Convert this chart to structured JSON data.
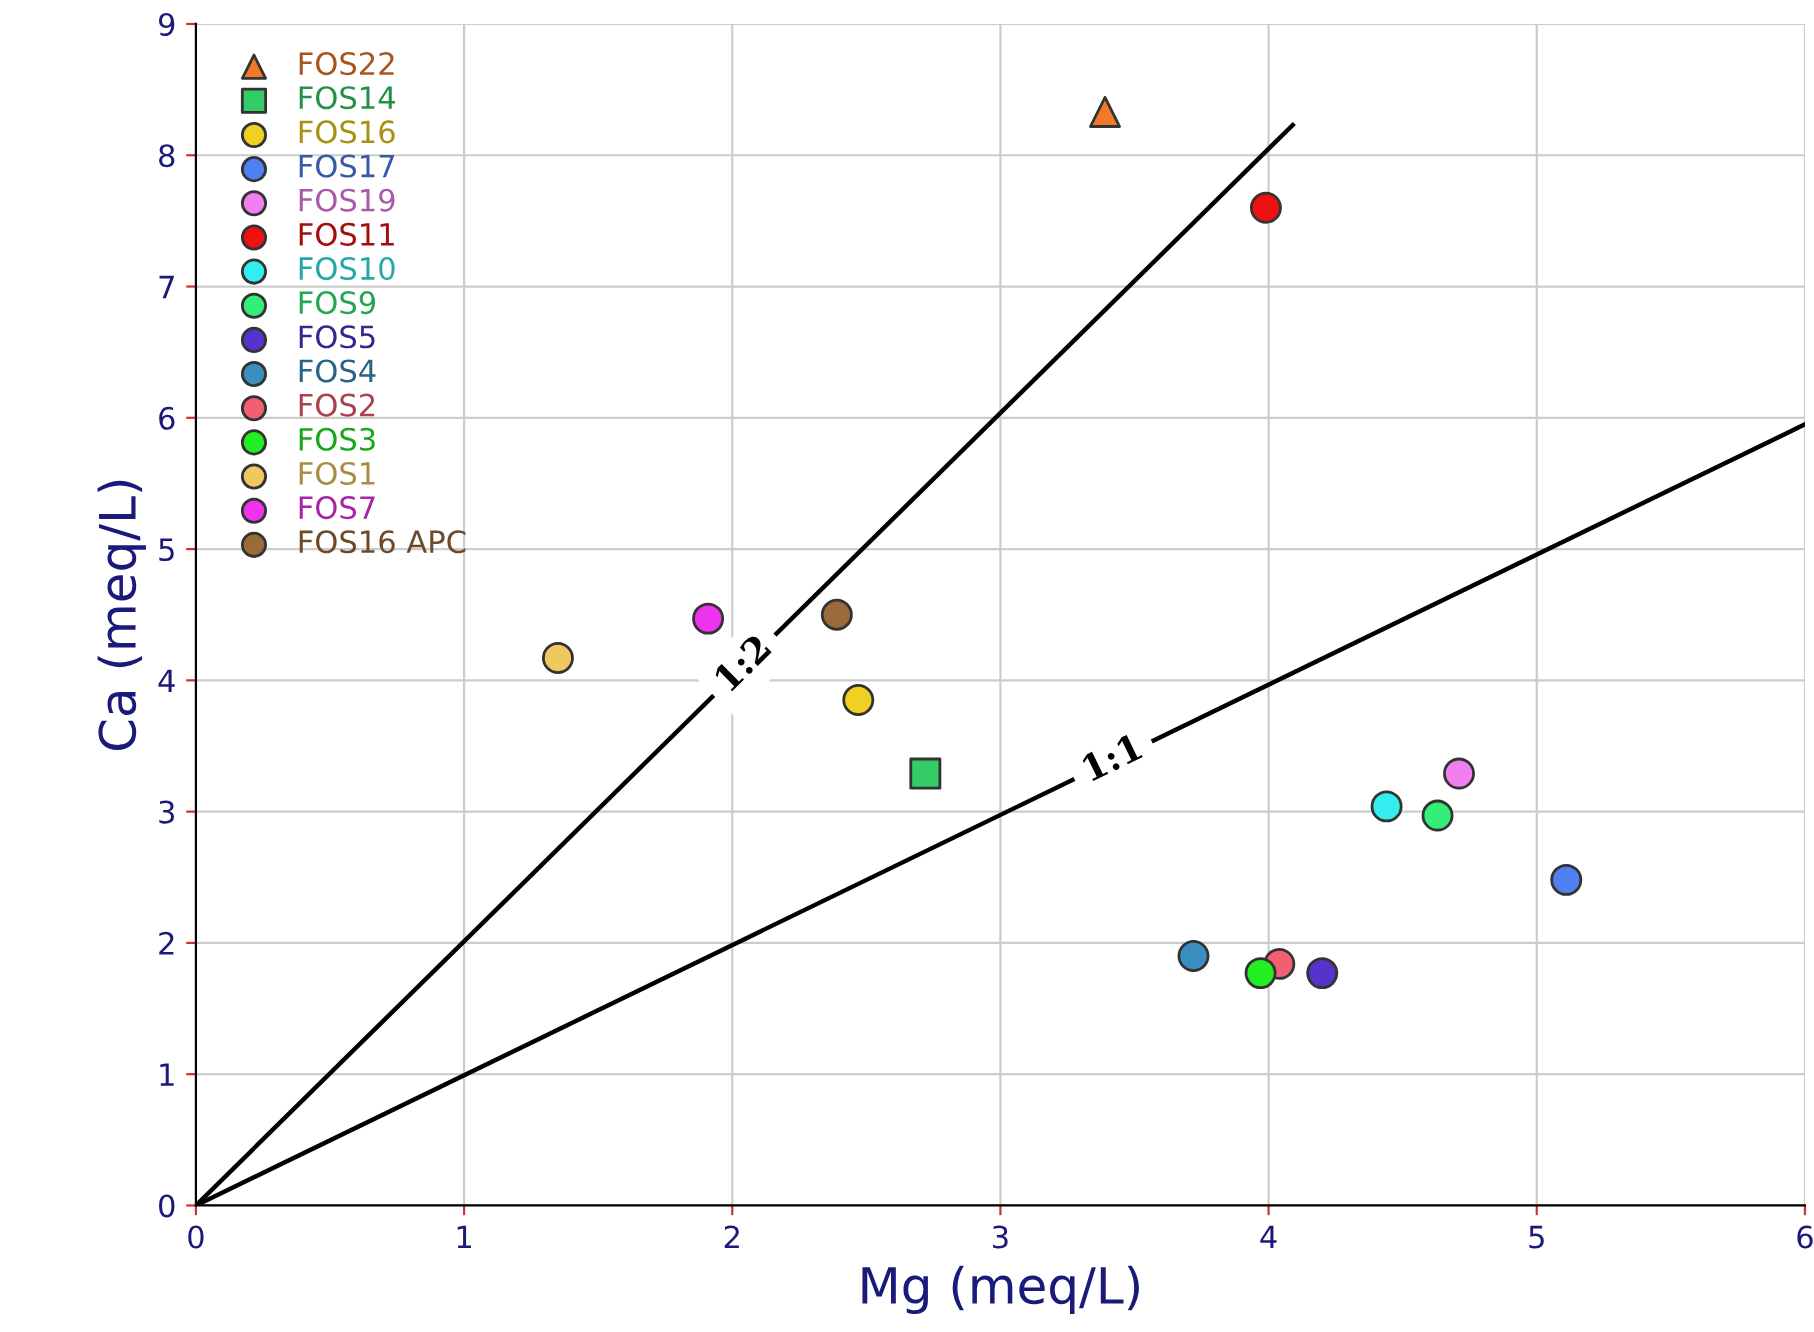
{
  "chart_data": {
    "type": "scatter",
    "xlabel": "Mg (meq/L)",
    "ylabel": "Ca (meq/L)",
    "xlim": [
      0,
      6
    ],
    "ylim": [
      0,
      9
    ],
    "xticks": [
      0,
      1,
      2,
      3,
      4,
      5,
      6
    ],
    "yticks": [
      0,
      1,
      2,
      3,
      4,
      5,
      6,
      7,
      8,
      9
    ],
    "grid": true,
    "legend": "top left",
    "series": [
      {
        "name": "FOS22",
        "color": "#f07a2a",
        "marker": "triangle",
        "x": [
          3.39
        ],
        "values": [
          8.33
        ]
      },
      {
        "name": "FOS14",
        "color": "#33cc66",
        "marker": "square",
        "x": [
          2.72
        ],
        "values": [
          3.29
        ]
      },
      {
        "name": "FOS16",
        "color": "#f0d020",
        "x": [
          2.47
        ],
        "values": [
          3.85
        ]
      },
      {
        "name": "FOS17",
        "color": "#4f7ff0",
        "x": [
          5.11
        ],
        "values": [
          2.48
        ]
      },
      {
        "name": "FOS19",
        "color": "#f080f0",
        "x": [
          4.71
        ],
        "values": [
          3.29
        ]
      },
      {
        "name": "FOS11",
        "color": "#ee1111",
        "x": [
          3.99
        ],
        "values": [
          7.6
        ]
      },
      {
        "name": "FOS10",
        "color": "#33eeee",
        "marker": "circle",
        "x": [
          4.44
        ],
        "values": [
          3.04
        ]
      },
      {
        "name": "FOS9",
        "color": "#33ee77",
        "marker": "circle",
        "x": [
          4.63
        ],
        "values": [
          2.97
        ]
      },
      {
        "name": "FOS5",
        "color": "#5533cc",
        "marker": "circle",
        "x": [
          4.2
        ],
        "values": [
          1.77
        ]
      },
      {
        "name": "FOS4",
        "color": "#3a8ec0",
        "marker": "circle",
        "x": [
          3.72
        ],
        "values": [
          1.9
        ]
      },
      {
        "name": "FOS2",
        "color": "#f06070",
        "marker": "circle",
        "x": [
          4.04
        ],
        "values": [
          1.84
        ]
      },
      {
        "name": "FOS3",
        "color": "#22ee22",
        "marker": "circle",
        "x": [
          3.97
        ],
        "values": [
          1.77
        ]
      },
      {
        "name": "FOS1",
        "color": "#f0c860",
        "marker": "circle",
        "x": [
          1.35
        ],
        "values": [
          4.17
        ]
      },
      {
        "name": "FOS7",
        "color": "#ee33ee",
        "marker": "circle",
        "x": [
          1.91
        ],
        "values": [
          4.47
        ]
      },
      {
        "name": "FOS16 APC",
        "color": "#9a6a3a",
        "marker": "circle",
        "x": [
          2.39
        ],
        "values": [
          4.5
        ]
      },
      {
        "type": "line",
        "color": "#000000",
        "x": [
          0,
          4.09
        ],
        "values": [
          0,
          8.23
        ]
      },
      {
        "type": "line",
        "color": "#000000",
        "x": [
          0,
          6
        ],
        "values": [
          0,
          5.95
        ]
      }
    ],
    "annotations": [
      "1:2",
      "1:1"
    ]
  }
}
